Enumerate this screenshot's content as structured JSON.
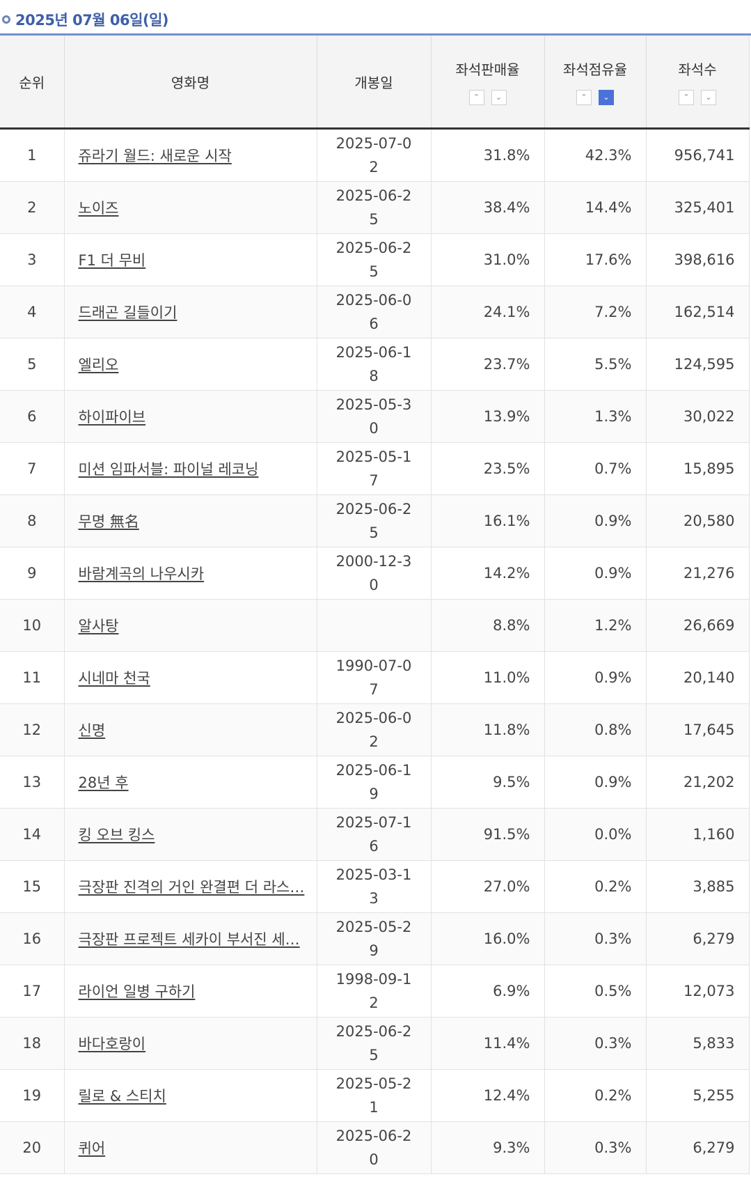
{
  "date_header": "2025년 07월 06일(일)",
  "columns": {
    "rank": "순위",
    "title": "영화명",
    "release": "개봉일",
    "sales_rate": "좌석판매율",
    "occupancy": "좌석점유율",
    "seats": "좌석수"
  },
  "sort": {
    "up_glyph": "⌃",
    "down_glyph": "⌄",
    "active": "occupancy-desc",
    "active_color": "#4a72d8"
  },
  "rows": [
    {
      "rank": "1",
      "title": "쥬라기 월드: 새로운 시작",
      "release": "2025-07-02",
      "sales": "31.8%",
      "occupancy": "42.3%",
      "seats": "956,741"
    },
    {
      "rank": "2",
      "title": "노이즈",
      "release": "2025-06-25",
      "sales": "38.4%",
      "occupancy": "14.4%",
      "seats": "325,401"
    },
    {
      "rank": "3",
      "title": "F1 더 무비",
      "release": "2025-06-25",
      "sales": "31.0%",
      "occupancy": "17.6%",
      "seats": "398,616"
    },
    {
      "rank": "4",
      "title": "드래곤 길들이기",
      "release": "2025-06-06",
      "sales": "24.1%",
      "occupancy": "7.2%",
      "seats": "162,514"
    },
    {
      "rank": "5",
      "title": "엘리오",
      "release": "2025-06-18",
      "sales": "23.7%",
      "occupancy": "5.5%",
      "seats": "124,595"
    },
    {
      "rank": "6",
      "title": "하이파이브",
      "release": "2025-05-30",
      "sales": "13.9%",
      "occupancy": "1.3%",
      "seats": "30,022"
    },
    {
      "rank": "7",
      "title": "미션 임파서블: 파이널 레코닝",
      "release": "2025-05-17",
      "sales": "23.5%",
      "occupancy": "0.7%",
      "seats": "15,895"
    },
    {
      "rank": "8",
      "title": "무명 無名",
      "release": "2025-06-25",
      "sales": "16.1%",
      "occupancy": "0.9%",
      "seats": "20,580"
    },
    {
      "rank": "9",
      "title": "바람계곡의 나우시카",
      "release": "2000-12-30",
      "sales": "14.2%",
      "occupancy": "0.9%",
      "seats": "21,276"
    },
    {
      "rank": "10",
      "title": "알사탕",
      "release": "",
      "sales": "8.8%",
      "occupancy": "1.2%",
      "seats": "26,669"
    },
    {
      "rank": "11",
      "title": "시네마 천국",
      "release": "1990-07-07",
      "sales": "11.0%",
      "occupancy": "0.9%",
      "seats": "20,140"
    },
    {
      "rank": "12",
      "title": "신명",
      "release": "2025-06-02",
      "sales": "11.8%",
      "occupancy": "0.8%",
      "seats": "17,645"
    },
    {
      "rank": "13",
      "title": "28년 후",
      "release": "2025-06-19",
      "sales": "9.5%",
      "occupancy": "0.9%",
      "seats": "21,202"
    },
    {
      "rank": "14",
      "title": "킹 오브 킹스",
      "release": "2025-07-16",
      "sales": "91.5%",
      "occupancy": "0.0%",
      "seats": "1,160"
    },
    {
      "rank": "15",
      "title": "극장판 진격의 거인 완결편 더 라스…",
      "release": "2025-03-13",
      "sales": "27.0%",
      "occupancy": "0.2%",
      "seats": "3,885"
    },
    {
      "rank": "16",
      "title": "극장판 프로젝트 세카이 부서진 세…",
      "release": "2025-05-29",
      "sales": "16.0%",
      "occupancy": "0.3%",
      "seats": "6,279"
    },
    {
      "rank": "17",
      "title": "라이언 일병 구하기",
      "release": "1998-09-12",
      "sales": "6.9%",
      "occupancy": "0.5%",
      "seats": "12,073"
    },
    {
      "rank": "18",
      "title": "바다호랑이",
      "release": "2025-06-25",
      "sales": "11.4%",
      "occupancy": "0.3%",
      "seats": "5,833"
    },
    {
      "rank": "19",
      "title": "릴로 & 스티치",
      "release": "2025-05-21",
      "sales": "12.4%",
      "occupancy": "0.2%",
      "seats": "5,255"
    },
    {
      "rank": "20",
      "title": "퀴어",
      "release": "2025-06-20",
      "sales": "9.3%",
      "occupancy": "0.3%",
      "seats": "6,279"
    }
  ]
}
